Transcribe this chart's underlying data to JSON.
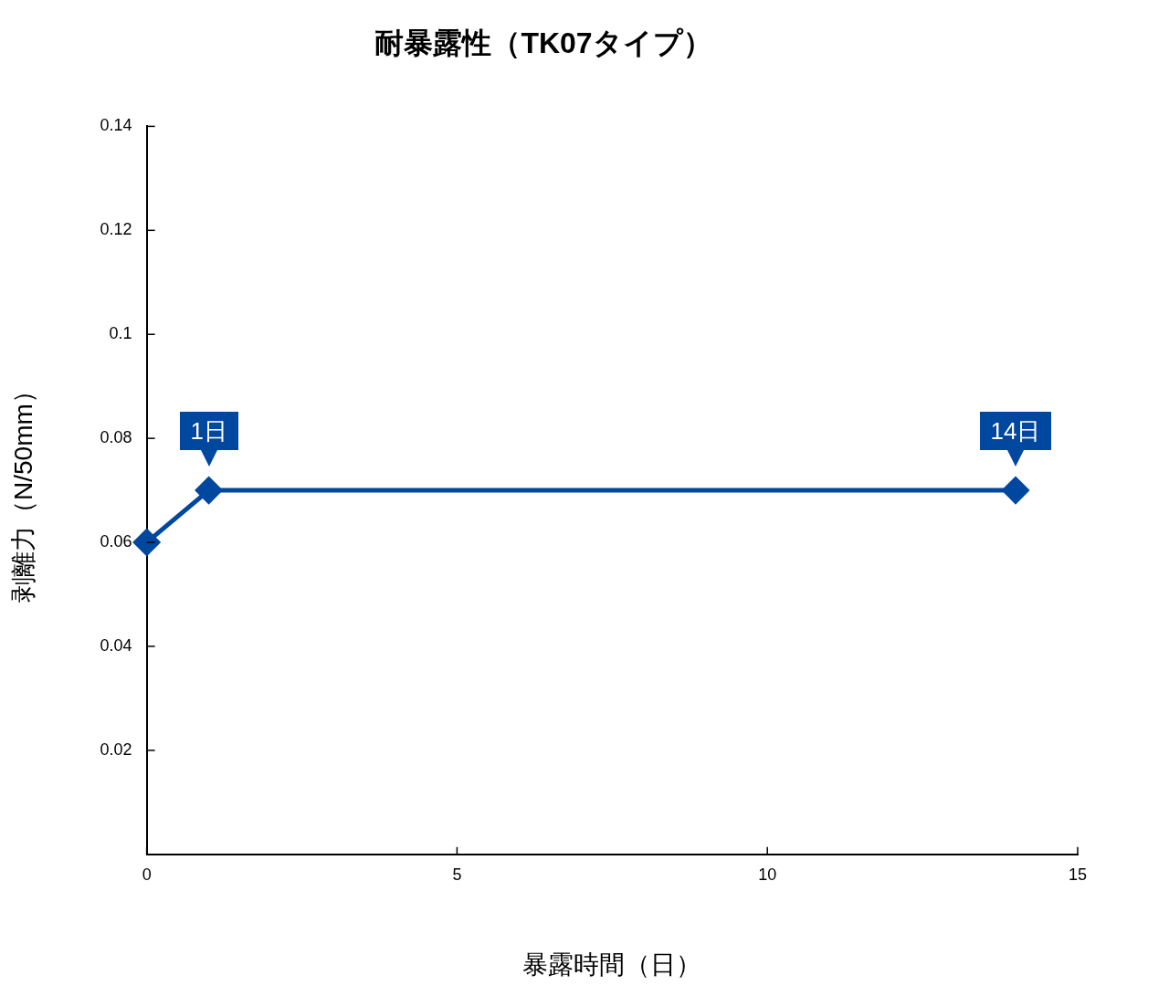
{
  "chart_data": {
    "type": "line",
    "title": "耐暴露性（TK07タイプ）",
    "xlabel": "暴露時間（日）",
    "ylabel": "剥離力（N/50mm）",
    "x": [
      0,
      1,
      14
    ],
    "series": [
      {
        "color": "#0047a0",
        "values": [
          0.06,
          0.07,
          0.07
        ]
      }
    ],
    "xlim": [
      0,
      15
    ],
    "xticks": [
      0,
      5,
      10,
      15
    ],
    "ylim": [
      0,
      0.14
    ],
    "yticks": [
      0.02,
      0.04,
      0.06,
      0.08,
      0.1,
      0.12,
      0.14
    ],
    "grid": false,
    "legend": false,
    "marker": "diamond",
    "line_style": "solid",
    "annotations": [
      {
        "text": "1日",
        "x": 1,
        "y": 0.07
      },
      {
        "text": "14日",
        "x": 14,
        "y": 0.07
      }
    ]
  }
}
